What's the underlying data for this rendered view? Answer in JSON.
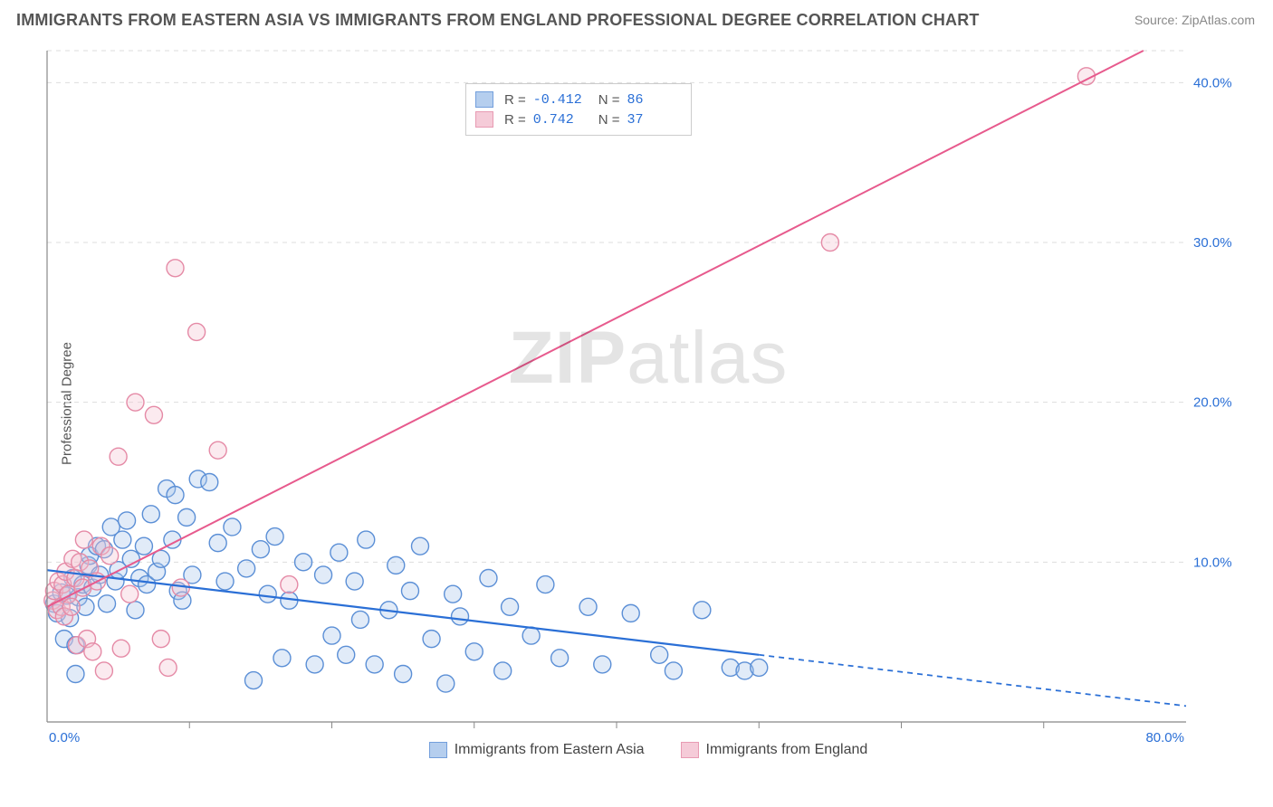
{
  "title": "IMMIGRANTS FROM EASTERN ASIA VS IMMIGRANTS FROM ENGLAND PROFESSIONAL DEGREE CORRELATION CHART",
  "source": "Source: ZipAtlas.com",
  "ylabel": "Professional Degree",
  "watermark_a": "ZIP",
  "watermark_b": "atlas",
  "chart": {
    "type": "scatter+regression",
    "background_color": "#ffffff",
    "grid_color": "#dddddd",
    "axis_color": "#888888",
    "marker_radius": 9.5,
    "marker_stroke_width": 1.4,
    "marker_fill_opacity": 0.35,
    "xlim": [
      0,
      80
    ],
    "ylim": [
      0,
      42
    ],
    "x_edge_ticks": [
      "0.0%",
      "80.0%"
    ],
    "y_ticks": [
      {
        "v": 10,
        "label": "10.0%"
      },
      {
        "v": 20,
        "label": "20.0%"
      },
      {
        "v": 30,
        "label": "30.0%"
      },
      {
        "v": 40,
        "label": "40.0%"
      }
    ],
    "x_minor_ticks": [
      10,
      20,
      30,
      40,
      50,
      60,
      70
    ],
    "series": [
      {
        "name": "Immigrants from Eastern Asia",
        "color_stroke": "#5b8fd6",
        "color_fill": "#a9c6ec",
        "R": "-0.412",
        "N": "86",
        "regression": {
          "x1": 0,
          "y1": 9.5,
          "x2": 50,
          "y2": 4.2,
          "extend_x2": 80,
          "extend_y2": 1.0,
          "color": "#2a6fd6",
          "width": 2.2,
          "dash_extend": "6 5"
        },
        "points": [
          [
            0.5,
            7.4
          ],
          [
            0.7,
            6.8
          ],
          [
            1,
            8.1
          ],
          [
            1.2,
            5.2
          ],
          [
            1.4,
            7.9
          ],
          [
            1.6,
            6.5
          ],
          [
            1.8,
            9.0
          ],
          [
            2,
            4.8
          ],
          [
            2,
            3.0
          ],
          [
            2.2,
            7.8
          ],
          [
            2.5,
            8.6
          ],
          [
            2.7,
            7.2
          ],
          [
            2.9,
            9.8
          ],
          [
            3,
            10.4
          ],
          [
            3.2,
            8.4
          ],
          [
            3.5,
            11.0
          ],
          [
            3.7,
            9.2
          ],
          [
            4,
            10.8
          ],
          [
            4.2,
            7.4
          ],
          [
            4.5,
            12.2
          ],
          [
            4.8,
            8.8
          ],
          [
            5,
            9.5
          ],
          [
            5.3,
            11.4
          ],
          [
            5.6,
            12.6
          ],
          [
            5.9,
            10.2
          ],
          [
            6.2,
            7.0
          ],
          [
            6.5,
            9.0
          ],
          [
            6.8,
            11.0
          ],
          [
            7,
            8.6
          ],
          [
            7.3,
            13.0
          ],
          [
            7.7,
            9.4
          ],
          [
            8,
            10.2
          ],
          [
            8.4,
            14.6
          ],
          [
            8.8,
            11.4
          ],
          [
            9,
            14.2
          ],
          [
            9.2,
            8.2
          ],
          [
            9.5,
            7.6
          ],
          [
            9.8,
            12.8
          ],
          [
            10.2,
            9.2
          ],
          [
            10.6,
            15.2
          ],
          [
            11.4,
            15.0
          ],
          [
            12,
            11.2
          ],
          [
            12.5,
            8.8
          ],
          [
            13,
            12.2
          ],
          [
            14,
            9.6
          ],
          [
            14.5,
            2.6
          ],
          [
            15,
            10.8
          ],
          [
            15.5,
            8.0
          ],
          [
            16,
            11.6
          ],
          [
            16.5,
            4.0
          ],
          [
            17,
            7.6
          ],
          [
            18,
            10.0
          ],
          [
            18.8,
            3.6
          ],
          [
            19.4,
            9.2
          ],
          [
            20,
            5.4
          ],
          [
            20.5,
            10.6
          ],
          [
            21,
            4.2
          ],
          [
            21.6,
            8.8
          ],
          [
            22,
            6.4
          ],
          [
            22.4,
            11.4
          ],
          [
            23,
            3.6
          ],
          [
            24,
            7.0
          ],
          [
            24.5,
            9.8
          ],
          [
            25,
            3.0
          ],
          [
            25.5,
            8.2
          ],
          [
            26.2,
            11.0
          ],
          [
            27,
            5.2
          ],
          [
            28,
            2.4
          ],
          [
            28.5,
            8.0
          ],
          [
            29,
            6.6
          ],
          [
            30,
            4.4
          ],
          [
            31,
            9.0
          ],
          [
            32,
            3.2
          ],
          [
            32.5,
            7.2
          ],
          [
            34,
            5.4
          ],
          [
            35,
            8.6
          ],
          [
            36,
            4.0
          ],
          [
            38,
            7.2
          ],
          [
            39,
            3.6
          ],
          [
            41,
            6.8
          ],
          [
            43,
            4.2
          ],
          [
            44,
            3.2
          ],
          [
            46,
            7.0
          ],
          [
            48,
            3.4
          ],
          [
            49,
            3.2
          ],
          [
            50,
            3.4
          ]
        ]
      },
      {
        "name": "Immigrants from England",
        "color_stroke": "#e58aa6",
        "color_fill": "#f4c3d2",
        "R": "0.742",
        "N": "37",
        "regression": {
          "x1": 0,
          "y1": 7.2,
          "x2": 77,
          "y2": 42,
          "color": "#e75a8d",
          "width": 2.0
        },
        "points": [
          [
            0.4,
            7.6
          ],
          [
            0.5,
            8.2
          ],
          [
            0.7,
            7.0
          ],
          [
            0.8,
            8.8
          ],
          [
            1,
            7.2
          ],
          [
            1.1,
            8.6
          ],
          [
            1.2,
            6.6
          ],
          [
            1.3,
            9.4
          ],
          [
            1.5,
            8.0
          ],
          [
            1.7,
            7.2
          ],
          [
            1.8,
            10.2
          ],
          [
            2,
            9.0
          ],
          [
            2.1,
            4.8
          ],
          [
            2.3,
            10.0
          ],
          [
            2.5,
            8.4
          ],
          [
            2.6,
            11.4
          ],
          [
            2.8,
            5.2
          ],
          [
            3,
            9.6
          ],
          [
            3.2,
            4.4
          ],
          [
            3.5,
            8.8
          ],
          [
            3.8,
            11.0
          ],
          [
            4,
            3.2
          ],
          [
            4.4,
            10.4
          ],
          [
            5,
            16.6
          ],
          [
            5.2,
            4.6
          ],
          [
            5.8,
            8.0
          ],
          [
            6.2,
            20.0
          ],
          [
            7.5,
            19.2
          ],
          [
            8,
            5.2
          ],
          [
            8.5,
            3.4
          ],
          [
            9,
            28.4
          ],
          [
            9.4,
            8.4
          ],
          [
            10.5,
            24.4
          ],
          [
            12,
            17.0
          ],
          [
            17,
            8.6
          ],
          [
            55,
            30.0
          ],
          [
            73,
            40.4
          ]
        ]
      }
    ]
  },
  "legend_top": {
    "r_label": "R =",
    "n_label": "N ="
  }
}
